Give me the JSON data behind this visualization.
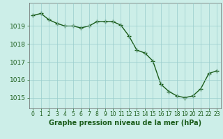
{
  "x": [
    0,
    1,
    2,
    3,
    4,
    5,
    6,
    7,
    8,
    9,
    10,
    11,
    12,
    13,
    14,
    15,
    16,
    17,
    18,
    19,
    20,
    21,
    22,
    23
  ],
  "y": [
    1019.6,
    1019.7,
    1019.35,
    1019.15,
    1019.0,
    1019.0,
    1018.9,
    1019.0,
    1019.25,
    1019.25,
    1019.25,
    1019.05,
    1018.45,
    1017.65,
    1017.5,
    1017.05,
    1015.75,
    1015.35,
    1015.1,
    1015.0,
    1015.1,
    1015.5,
    1016.35,
    1016.5
  ],
  "line_color": "#1a5c1a",
  "marker": "+",
  "marker_size": 4,
  "marker_edge_width": 1.0,
  "line_width": 1.0,
  "background_color": "#cceee8",
  "grid_color": "#99cccc",
  "xlabel": "Graphe pression niveau de la mer (hPa)",
  "xlabel_fontsize": 7,
  "ylabel_ticks": [
    1015,
    1016,
    1017,
    1018,
    1019
  ],
  "ylim": [
    1014.4,
    1020.3
  ],
  "xlim": [
    -0.5,
    23.5
  ],
  "xtick_fontsize": 5.5,
  "ytick_fontsize": 6.5,
  "label_color": "#1a5c1a",
  "tick_color": "#1a5c1a"
}
